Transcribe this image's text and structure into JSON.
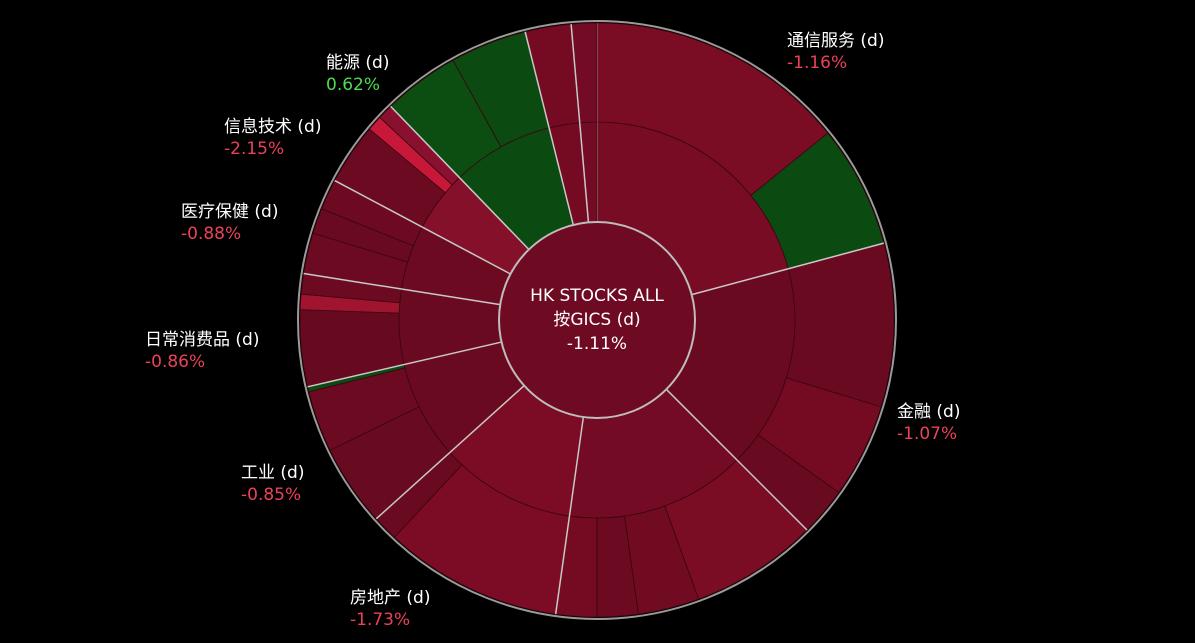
{
  "chart_data": {
    "type": "sunburst",
    "title": "HK STOCKS ALL",
    "subtitle": "按GICS (d)",
    "total_change": -1.11,
    "total_change_label": "-1.11%",
    "center_color": "#6e0a22",
    "positive_color": "#4fdc4f",
    "negative_color": "#ea4259",
    "sectors": [
      {
        "name": "通信服务 (d)",
        "change": -1.16,
        "change_label": "-1.16%",
        "value": 75,
        "color": "#790c25",
        "children": [
          {
            "value": 51,
            "color": "#7a0c24"
          },
          {
            "value": 24,
            "color": "#0b4a10"
          }
        ]
      },
      {
        "name": "金融 (d)",
        "change": -1.07,
        "change_label": "-1.07%",
        "value": 60,
        "color": "#6a0a21",
        "children": [
          {
            "value": 32,
            "color": "#6a0a20"
          },
          {
            "value": 18.5,
            "color": "#740b23"
          },
          {
            "value": 9.5,
            "color": "#680a20"
          }
        ]
      },
      {
        "name": null,
        "change": null,
        "change_label": null,
        "value": 53,
        "color": "#720b23",
        "children": [
          {
            "value": 25,
            "color": "#7a0c24"
          },
          {
            "value": 12,
            "color": "#700b22"
          },
          {
            "value": 8,
            "color": "#6c0a21"
          },
          {
            "value": 8,
            "color": "#740b23"
          }
        ]
      },
      {
        "name": "房地产 (d)",
        "change": -1.73,
        "change_label": "-1.73%",
        "value": 40,
        "color": "#7c0c25",
        "children": [
          {
            "value": 35,
            "color": "#7c0c25"
          },
          {
            "value": 5,
            "color": "#6a0a20"
          }
        ]
      },
      {
        "name": "工业 (d)",
        "change": -0.85,
        "change_label": "-0.85%",
        "value": 29,
        "color": "#6a0a20",
        "children": [
          {
            "value": 16,
            "color": "#680a20"
          },
          {
            "value": 12,
            "color": "#6c0a21"
          },
          {
            "value": 1,
            "color": "#0b4a10"
          }
        ]
      },
      {
        "name": "日常消费品 (d)",
        "change": -0.86,
        "change_label": "-0.86%",
        "value": 22,
        "color": "#6a0a20",
        "children": [
          {
            "value": 15,
            "color": "#670a1f"
          },
          {
            "value": 3,
            "color": "#a0142f"
          },
          {
            "value": 4,
            "color": "#6c0a21"
          }
        ]
      },
      {
        "name": "医疗保健 (d)",
        "change": -0.88,
        "change_label": "-0.88%",
        "value": 19,
        "color": "#6c0a21",
        "children": [
          {
            "value": 8,
            "color": "#6c0a21"
          },
          {
            "value": 5,
            "color": "#690a20"
          },
          {
            "value": 6,
            "color": "#6d0a21"
          }
        ]
      },
      {
        "name": "信息技术 (d)",
        "change": -2.15,
        "change_label": "-2.15%",
        "value": 18,
        "color": "#85102a",
        "children": [
          {
            "value": 12,
            "color": "#6c0a21"
          },
          {
            "value": 3,
            "color": "#c8183a"
          },
          {
            "value": 3,
            "color": "#8a1030"
          }
        ]
      },
      {
        "name": "能源 (d)",
        "change": 0.62,
        "change_label": "0.62%",
        "value": 30,
        "color": "#0b4a10",
        "children": [
          {
            "value": 15,
            "color": "#0c4d11"
          },
          {
            "value": 15,
            "color": "#0b4a10"
          }
        ]
      },
      {
        "name": null,
        "change": null,
        "change_label": null,
        "value": 9,
        "color": "#740b23",
        "children": [
          {
            "value": 9,
            "color": "#740b23"
          }
        ]
      },
      {
        "name": null,
        "change": null,
        "change_label": null,
        "value": 5,
        "color": "#720b23",
        "children": [
          {
            "value": 5,
            "color": "#720b23"
          }
        ]
      }
    ]
  }
}
